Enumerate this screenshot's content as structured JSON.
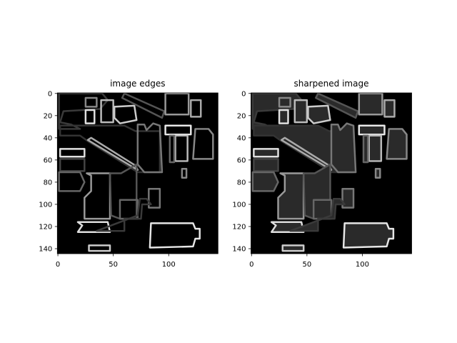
{
  "chart_data": [
    {
      "type": "image",
      "title": "image edges",
      "xlim": [
        -0.5,
        144.5
      ],
      "ylim": [
        144.5,
        -0.5
      ],
      "xticks": [
        0,
        50,
        100
      ],
      "yticks": [
        0,
        20,
        40,
        60,
        80,
        100,
        120,
        140
      ]
    },
    {
      "type": "image",
      "title": "sharpened image",
      "xlim": [
        -0.5,
        144.5
      ],
      "ylim": [
        144.5,
        -0.5
      ],
      "xticks": [
        0,
        50,
        100
      ],
      "yticks": [
        0,
        20,
        40,
        60,
        80,
        100,
        120,
        140
      ]
    }
  ]
}
